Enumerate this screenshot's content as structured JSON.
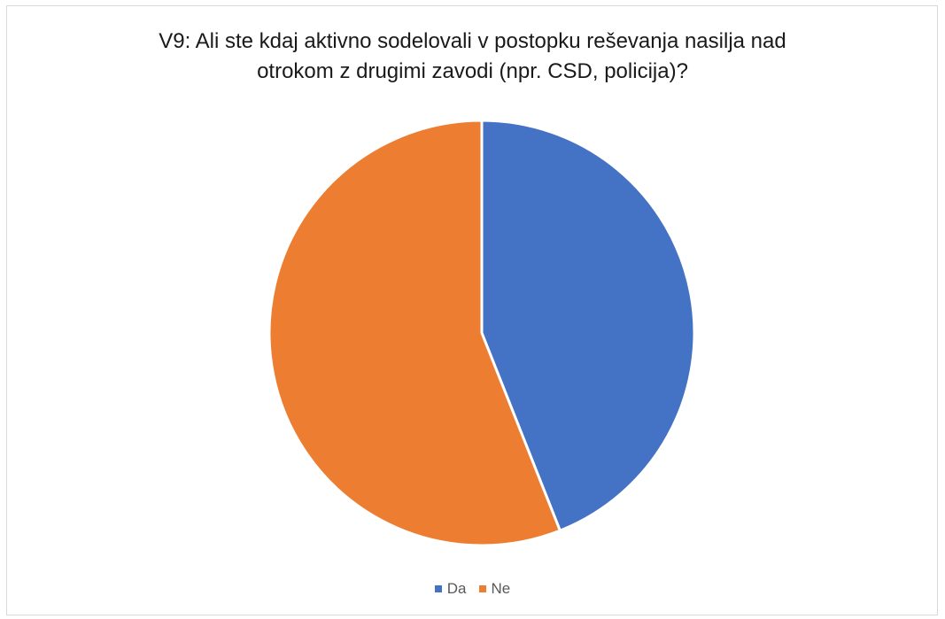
{
  "chart_data": {
    "type": "pie",
    "title_lines": [
      "V9: Ali ste kdaj aktivno sodelovali v postopku reševanja nasilja nad",
      "otrokom z drugimi zavodi (npr. CSD, policija)?"
    ],
    "categories": [
      "Da",
      "Ne"
    ],
    "values": [
      44,
      56
    ],
    "colors": [
      "#4472c4",
      "#ed7d31"
    ],
    "legend_position": "bottom"
  }
}
